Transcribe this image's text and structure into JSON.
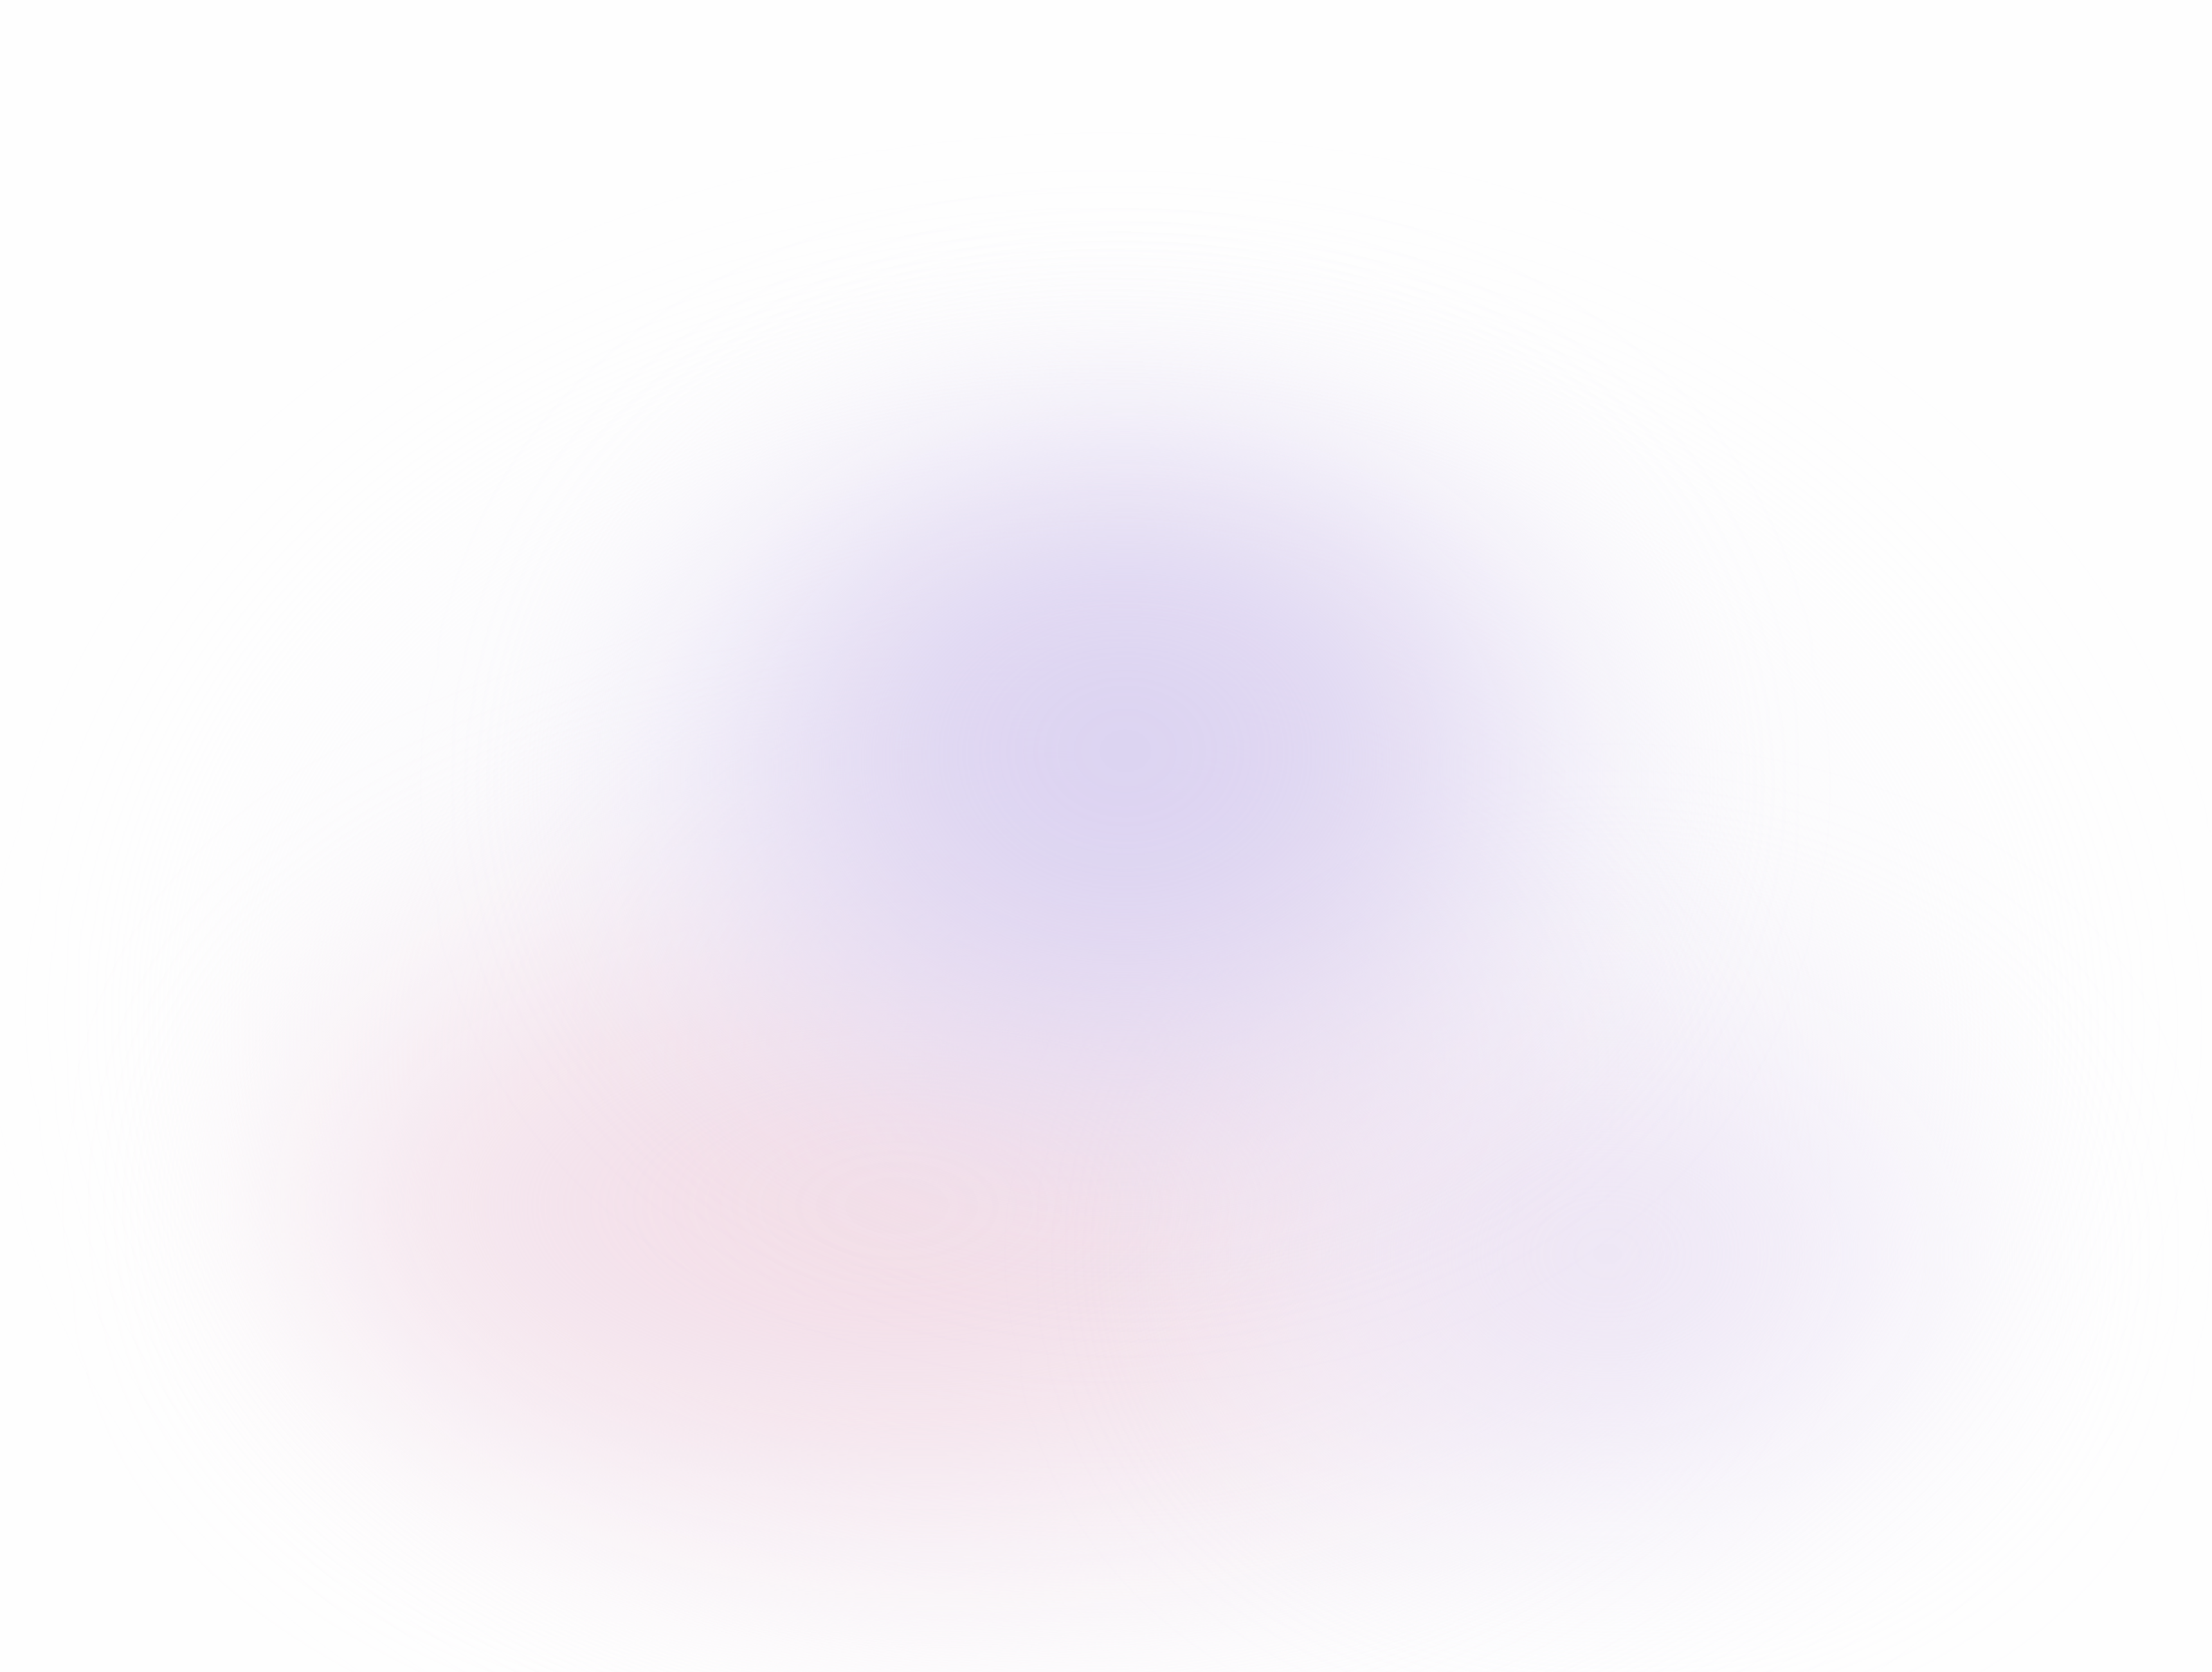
{
  "background": {
    "color": "#fefefe"
  },
  "blobs": [
    {
      "name": "purple",
      "color": "#d6cef0"
    },
    {
      "name": "pink",
      "color": "#f2dae4"
    },
    {
      "name": "violet-right",
      "color": "#e8def2"
    }
  ]
}
